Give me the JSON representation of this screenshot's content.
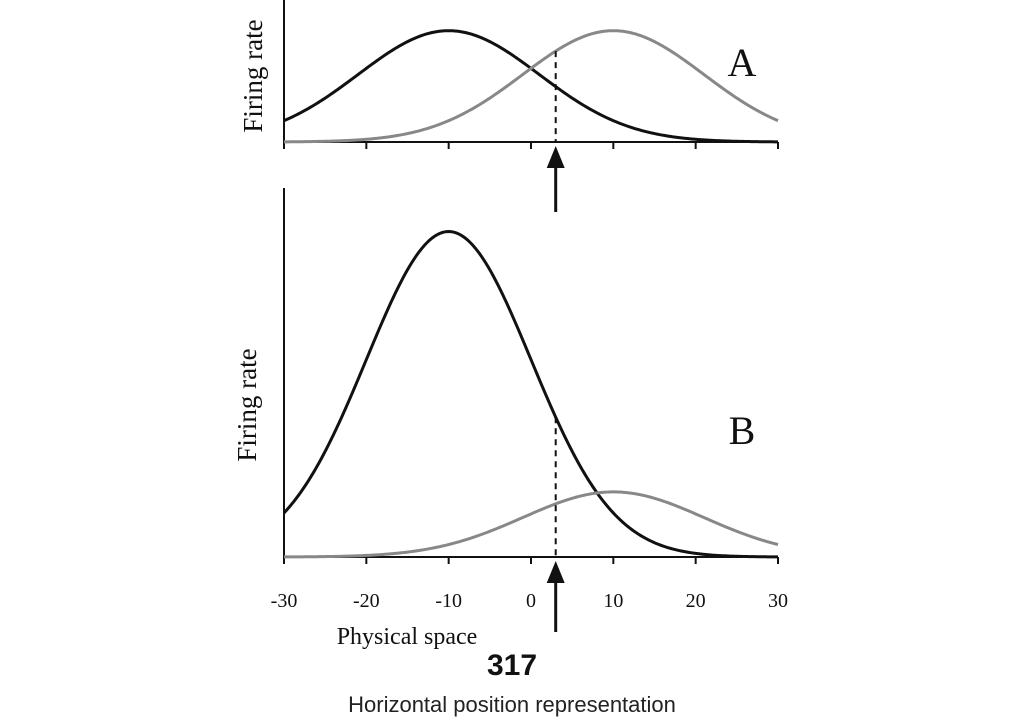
{
  "chart_data": [
    {
      "type": "line",
      "panel_label": "A",
      "ylabel": "Firing rate",
      "xlabel": "",
      "xlim": [
        -30,
        30
      ],
      "ylim": [
        0,
        1.15
      ],
      "x_ticks": [
        -30,
        -20,
        -10,
        0,
        10,
        20,
        30
      ],
      "show_tick_labels": false,
      "series": [
        {
          "color": "#111111",
          "mean": -10,
          "sd": 11,
          "peak": 1.0,
          "x": [
            -30,
            -20,
            -10,
            0,
            10,
            20,
            30
          ],
          "y": [
            0.19,
            0.66,
            1.0,
            0.66,
            0.19,
            0.02,
            0.0
          ]
        },
        {
          "color": "#888888",
          "mean": 10,
          "sd": 11,
          "peak": 1.0,
          "x": [
            -30,
            -20,
            -10,
            0,
            10,
            20,
            30
          ],
          "y": [
            0.0,
            0.02,
            0.19,
            0.66,
            1.0,
            0.66,
            0.19
          ]
        }
      ],
      "marker_x": 3
    },
    {
      "type": "line",
      "panel_label": "B",
      "ylabel": "Firing rate",
      "xlabel": "Physical space",
      "xlim": [
        -30,
        30
      ],
      "ylim": [
        0,
        1.1
      ],
      "x_ticks": [
        -30,
        -20,
        -10,
        0,
        10,
        20,
        30
      ],
      "x_tick_labels": [
        "-30",
        "-20",
        "-10",
        "0",
        "10",
        "20",
        "30"
      ],
      "show_tick_labels": true,
      "series": [
        {
          "color": "#111111",
          "mean": -10,
          "sd": 10,
          "peak": 1.0,
          "x": [
            -30,
            -20,
            -10,
            0,
            10,
            20,
            30
          ],
          "y": [
            0.14,
            0.61,
            1.0,
            0.61,
            0.14,
            0.01,
            0.0
          ]
        },
        {
          "color": "#888888",
          "mean": 10,
          "sd": 11,
          "peak": 0.2,
          "x": [
            -30,
            -20,
            -10,
            0,
            10,
            20,
            30
          ],
          "y": [
            0.0,
            0.0,
            0.04,
            0.13,
            0.2,
            0.13,
            0.04
          ]
        }
      ],
      "marker_x": 3
    }
  ],
  "caption": {
    "number": "317",
    "text": "Horizontal position representation"
  }
}
